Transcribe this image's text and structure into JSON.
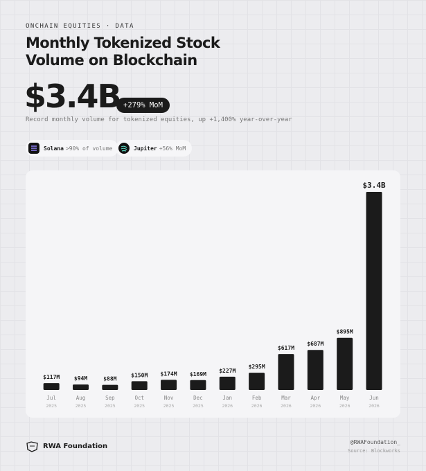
{
  "header": {
    "eyebrow": "ONCHAIN EQUITIES · DATA",
    "title": "Monthly Tokenized Stock Volume on Blockchain",
    "headline": "$3.4B",
    "badge": "+279% MoM",
    "description": "Record monthly volume for tokenized equities, up +1,400% year-over-year"
  },
  "pills": [
    {
      "name": "Solana",
      "detail": ">90% of volume"
    },
    {
      "name": "Jupiter",
      "detail": "+56% MoM"
    }
  ],
  "chart_data": {
    "type": "bar",
    "color": "#1b1b1b",
    "categories": [
      "Jul",
      "Aug",
      "Sep",
      "Oct",
      "Nov",
      "Dec",
      "Jan",
      "Feb",
      "Mar",
      "Apr",
      "May",
      "Jun"
    ],
    "category_years": [
      "2025",
      "2025",
      "2025",
      "2025",
      "2025",
      "2025",
      "2026",
      "2026",
      "2026",
      "2026",
      "2026",
      "2026"
    ],
    "values": [
      117,
      94,
      88,
      150,
      174,
      169,
      227,
      295,
      617,
      687,
      895,
      3400
    ],
    "value_labels": [
      "$117M",
      "$94M",
      "$88M",
      "$150M",
      "$174M",
      "$169M",
      "$227M",
      "$295M",
      "$617M",
      "$687M",
      "$895M",
      "$3.4B"
    ]
  },
  "footer": {
    "brand": "RWA Foundation",
    "handle": "@RWAFoundation_",
    "source": "Source: Blockworks"
  }
}
